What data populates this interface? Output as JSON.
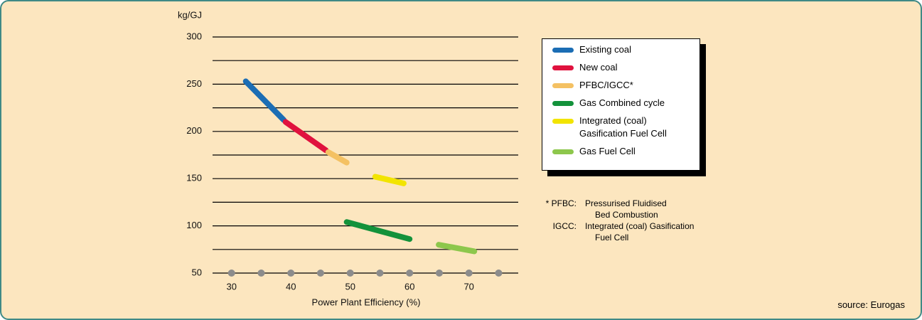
{
  "chart_data": {
    "type": "line",
    "ylabel": "kg/GJ",
    "xlabel": "Power Plant Efficiency (%)",
    "xlim": [
      26.8,
      78.3
    ],
    "ylim": [
      50,
      300
    ],
    "xticks": [
      30,
      40,
      50,
      60,
      70
    ],
    "x_markers": [
      30,
      35,
      40,
      45,
      50,
      55,
      60,
      65,
      70,
      75
    ],
    "yticks": [
      50,
      100,
      150,
      200,
      250,
      300
    ],
    "minor_yticks": [
      75,
      125,
      175,
      225,
      275
    ],
    "grid": true,
    "legend": "right",
    "series": [
      {
        "name": "Existing coal",
        "color": "#1b6db4",
        "x": [
          32.4,
          38.8
        ],
        "values": [
          253,
          212
        ]
      },
      {
        "name": "New coal",
        "color": "#e0123e",
        "x": [
          39.1,
          45.9
        ],
        "values": [
          210,
          180
        ]
      },
      {
        "name": "PFBC/IGCC*",
        "color": "#f4c163",
        "x": [
          46.3,
          49.4
        ],
        "values": [
          178,
          167
        ]
      },
      {
        "name": "Gas Combined cycle",
        "color": "#13923b",
        "x": [
          49.4,
          60.0
        ],
        "values": [
          104,
          86
        ]
      },
      {
        "name": "Integrated (coal) Gasification Fuel Cell",
        "color": "#f2e400",
        "x": [
          54.2,
          59.0
        ],
        "values": [
          152,
          145
        ]
      },
      {
        "name": "Gas Fuel Cell",
        "color": "#8dc74c",
        "x": [
          64.9,
          70.9
        ],
        "values": [
          80,
          73
        ]
      }
    ],
    "notes": [
      {
        "label": "* PFBC:",
        "lines": [
          "Pressurised Fluidised",
          "Bed Combustion"
        ]
      },
      {
        "label": "IGCC:",
        "lines": [
          "Integrated (coal) Gasification",
          "Fuel Cell"
        ]
      }
    ],
    "source": "source: Eurogas"
  }
}
